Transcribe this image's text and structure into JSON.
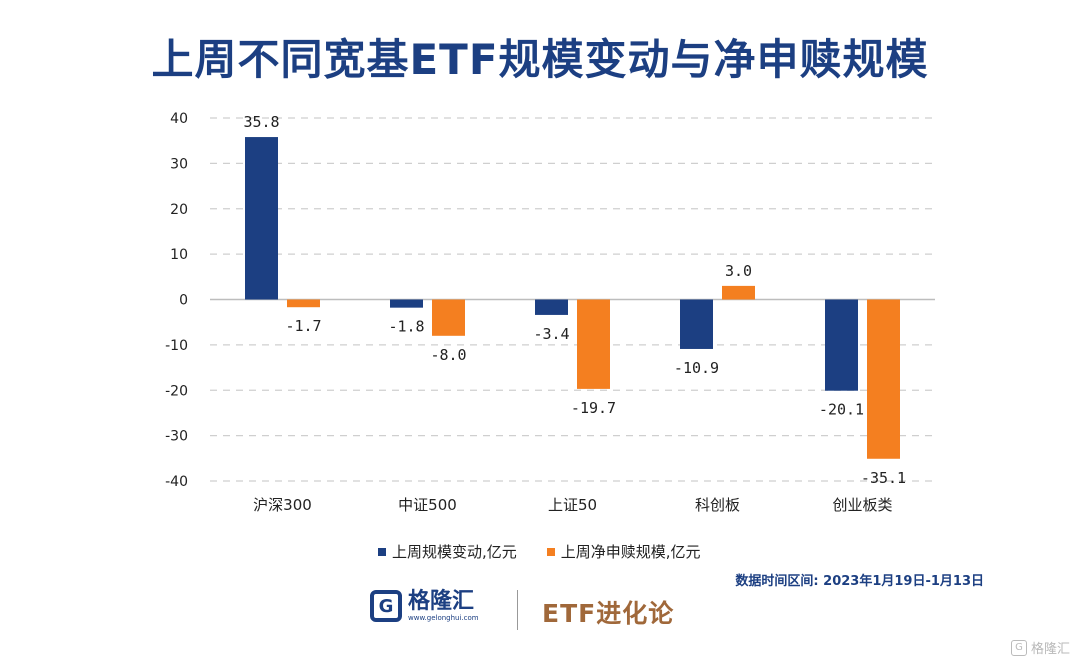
{
  "title": "上周不同宽基ETF规模变动与净申赎规模",
  "chart_data": {
    "type": "bar",
    "title": "上周不同宽基ETF规模变动与净申赎规模",
    "categories": [
      "沪深300",
      "中证500",
      "上证50",
      "科创板",
      "创业板类"
    ],
    "series": [
      {
        "name": "上周规模变动,亿元",
        "color": "#1c3f82",
        "values": [
          35.8,
          -1.8,
          -3.4,
          -10.9,
          -20.1
        ],
        "labels": [
          "35.8",
          "-1.8",
          "-3.4",
          "-10.9",
          "-20.1"
        ]
      },
      {
        "name": "上周净申赎规模,亿元",
        "color": "#f47f20",
        "values": [
          -1.7,
          -8.0,
          -19.7,
          3.0,
          -35.1
        ],
        "labels": [
          "-1.7",
          "-8.0",
          "-19.7",
          "3.0",
          "-35.1"
        ]
      }
    ],
    "ylim": [
      -40,
      40
    ],
    "yticks": [
      40,
      30,
      20,
      10,
      0,
      -10,
      -20,
      -30,
      -40
    ],
    "grid": true,
    "legend_position": "bottom"
  },
  "source_note": "数据时间区间: 2023年1月19日-1月13日",
  "brand": {
    "logo_glyph": "G",
    "logo_name": "格隆汇",
    "logo_url": "www.gelonghui.com",
    "column_name": "ETF进化论",
    "watermark_glyph": "G",
    "watermark_text": "格隆汇"
  }
}
